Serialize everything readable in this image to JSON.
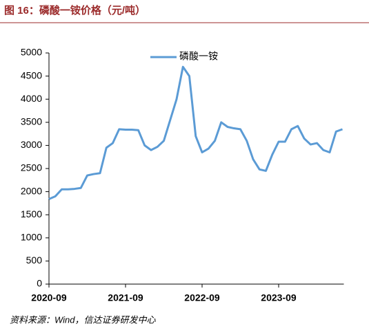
{
  "chart_data": {
    "type": "line",
    "title": "图 16：磷酸一铵价格（元/吨）",
    "source": "资料来源：Wind，信达证券研发中心",
    "x": [
      "2020-09",
      "2020-10",
      "2020-11",
      "2020-12",
      "2021-01",
      "2021-02",
      "2021-03",
      "2021-04",
      "2021-05",
      "2021-06",
      "2021-07",
      "2021-08",
      "2021-09",
      "2021-10",
      "2021-11",
      "2021-12",
      "2022-01",
      "2022-02",
      "2022-03",
      "2022-04",
      "2022-05",
      "2022-06",
      "2022-07",
      "2022-08",
      "2022-09",
      "2022-10",
      "2022-11",
      "2022-12",
      "2023-01",
      "2023-02",
      "2023-03",
      "2023-04",
      "2023-05",
      "2023-06",
      "2023-07",
      "2023-08",
      "2023-09",
      "2023-10",
      "2023-11",
      "2023-12",
      "2024-01",
      "2024-02",
      "2024-03",
      "2024-04",
      "2024-05",
      "2024-06",
      "2024-07"
    ],
    "series": [
      {
        "name": "磷酸一铵",
        "color": "#5b9bd5",
        "values": [
          1840,
          1900,
          2050,
          2050,
          2060,
          2080,
          2350,
          2380,
          2400,
          2950,
          3050,
          3350,
          3340,
          3340,
          3330,
          3000,
          2900,
          2970,
          3100,
          3550,
          4000,
          4700,
          4500,
          3200,
          2850,
          2930,
          3100,
          3500,
          3400,
          3370,
          3350,
          3100,
          2700,
          2480,
          2450,
          2800,
          3080,
          3080,
          3350,
          3420,
          3150,
          3020,
          3050,
          2900,
          2850,
          3300,
          3350
        ]
      }
    ],
    "xticks": [
      "2020-09",
      "2021-09",
      "2022-09",
      "2023-09"
    ],
    "ylim": [
      0,
      5000
    ],
    "yticks": [
      0,
      500,
      1000,
      1500,
      2000,
      2500,
      3000,
      3500,
      4000,
      4500,
      5000
    ],
    "grid": false,
    "legend": "top"
  }
}
